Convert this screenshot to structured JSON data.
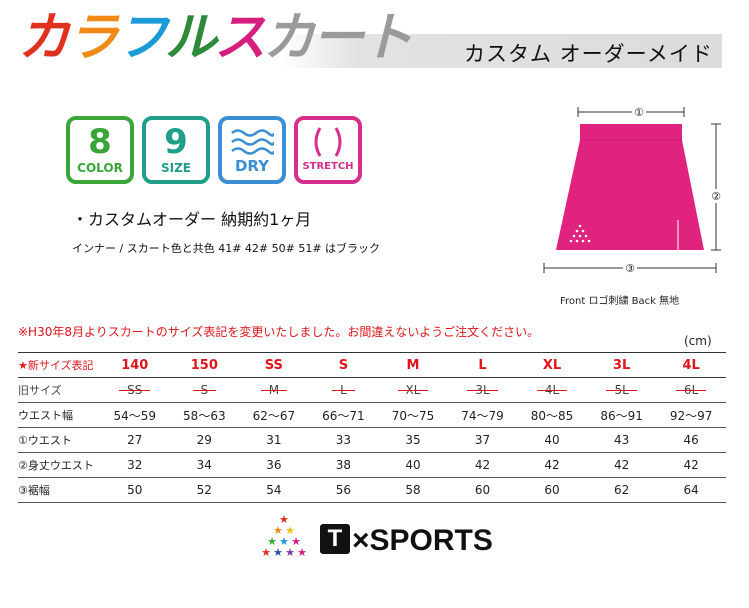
{
  "header": {
    "title_chars": [
      {
        "ch": "カ",
        "color": "#e0301e"
      },
      {
        "ch": "ラ",
        "color": "#f08a16"
      },
      {
        "ch": "フ",
        "color": "#1a9ad6"
      },
      {
        "ch": "ル",
        "color": "#2e8a3a"
      },
      {
        "ch": "ス",
        "color": "#d61e7f"
      },
      {
        "ch": "カ",
        "color": "#9a9a9a"
      },
      {
        "ch": "ー",
        "color": "#9a9a9a"
      },
      {
        "ch": "ト",
        "color": "#9a9a9a"
      }
    ],
    "title": "カラフルスカート",
    "subtitle": "カスタム オーダーメイド"
  },
  "badges": {
    "color": {
      "big": "8",
      "small": "COLOR"
    },
    "size": {
      "big": "9",
      "small": "SIZE"
    },
    "dry": {
      "small": "DRY"
    },
    "stretch": {
      "small": "STRETCH"
    }
  },
  "info": {
    "custom_line": "・カスタムオーダー 納期約1ヶ月",
    "inner_line": "インナー / スカート色と共色 41# 42# 50# 51# はブラック"
  },
  "diagram": {
    "labels": [
      "①",
      "②",
      "③"
    ],
    "caption": "Front ロゴ刺繍 Back 無地",
    "skirt_color": "#e0237f"
  },
  "notice": "※H30年8月よりスカートのサイズ表記を変更いたしました。お間違えないようご注文ください。",
  "unit": "(cm)",
  "table": {
    "header_label": "★新サイズ表記",
    "sizes": [
      "140",
      "150",
      "SS",
      "S",
      "M",
      "L",
      "XL",
      "3L",
      "4L"
    ],
    "old_label": "旧サイズ",
    "old_sizes": [
      "SS",
      "S",
      "M",
      "L",
      "XL",
      "3L",
      "4L",
      "5L",
      "6L"
    ],
    "rows": [
      {
        "label": "ウエスト幅",
        "values": [
          "54〜59",
          "58〜63",
          "62〜67",
          "66〜71",
          "70〜75",
          "74〜79",
          "80〜85",
          "86〜91",
          "92〜97"
        ]
      },
      {
        "label": "①ウエスト",
        "values": [
          "27",
          "29",
          "31",
          "33",
          "35",
          "37",
          "40",
          "43",
          "46"
        ]
      },
      {
        "label": "②身丈ウエスト",
        "values": [
          "32",
          "34",
          "36",
          "38",
          "40",
          "42",
          "42",
          "42",
          "42"
        ]
      },
      {
        "label": "③裾幅",
        "values": [
          "50",
          "52",
          "54",
          "56",
          "58",
          "60",
          "60",
          "62",
          "64"
        ]
      }
    ]
  },
  "logo": {
    "t_letter": "T",
    "brand_rest": "×SPORTS"
  }
}
